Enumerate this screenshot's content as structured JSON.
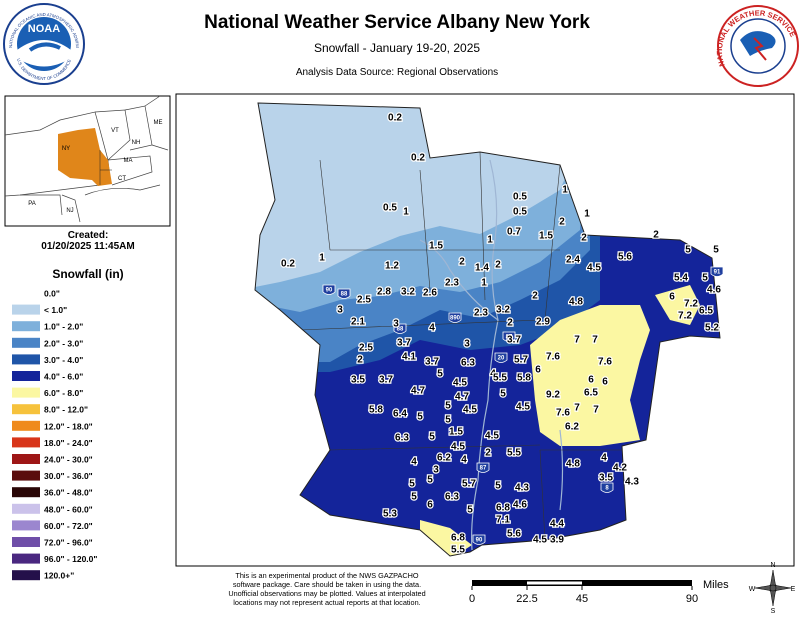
{
  "header": {
    "title": "National Weather Service Albany New York",
    "subtitle": "Snowfall - January 19-20, 2025",
    "source": "Analysis Data Source: Regional Observations"
  },
  "logos": {
    "noaa": "NOAA",
    "noaa_ring_top": "NATIONAL OCEANIC AND ATMOSPHERIC ADMINISTRATION",
    "noaa_ring_bottom": "U.S. DEPARTMENT OF COMMERCE",
    "nws_ring": "NATIONAL WEATHER SERVICE"
  },
  "inset": {
    "labels": [
      "VT",
      "NH",
      "ME",
      "NY",
      "MA",
      "CT",
      "PA",
      "NJ"
    ]
  },
  "created": {
    "label": "Created:",
    "date": "01/20/2025 11:45AM"
  },
  "legend": {
    "title": "Snowfall (in)",
    "items": [
      {
        "label": "0.0\"",
        "color": "#ffffff"
      },
      {
        "label": "< 1.0\"",
        "color": "#b9d3ea"
      },
      {
        "label": "1.0\" - 2.0\"",
        "color": "#7eb0db"
      },
      {
        "label": "2.0\" - 3.0\"",
        "color": "#4a84c6"
      },
      {
        "label": "3.0\" - 4.0\"",
        "color": "#1f55a8"
      },
      {
        "label": "4.0\" - 6.0\"",
        "color": "#14249a"
      },
      {
        "label": "6.0\" - 8.0\"",
        "color": "#fbf7a2"
      },
      {
        "label": "8.0\" - 12.0\"",
        "color": "#f6c23c"
      },
      {
        "label": "12.0\" - 18.0\"",
        "color": "#ef8a1c"
      },
      {
        "label": "18.0\" - 24.0\"",
        "color": "#d8351a"
      },
      {
        "label": "24.0\" - 30.0\"",
        "color": "#9e1616"
      },
      {
        "label": "30.0\" - 36.0\"",
        "color": "#5a0c0c"
      },
      {
        "label": "36.0\" - 48.0\"",
        "color": "#2a0606"
      },
      {
        "label": "48.0\" - 60.0\"",
        "color": "#cbc2ea"
      },
      {
        "label": "60.0\" - 72.0\"",
        "color": "#9b86cf"
      },
      {
        "label": "72.0\" - 96.0\"",
        "color": "#6f4ea8"
      },
      {
        "label": "96.0\" - 120.0\"",
        "color": "#4a2880"
      },
      {
        "label": "120.0+\"",
        "color": "#24104a"
      }
    ]
  },
  "map": {
    "observations": [
      0.2,
      0.2,
      0.5,
      1,
      0.5,
      0.5,
      1,
      1,
      2,
      1.5,
      0.7,
      1,
      1.5,
      2,
      1.4,
      2,
      1,
      2.3,
      1.2,
      1,
      0.2,
      2,
      2,
      2.4,
      4.5,
      5.6,
      5,
      5,
      5.4,
      5,
      4.6,
      6,
      7.2,
      6.5,
      7.2,
      5.2,
      4.8,
      2,
      3.2,
      2.3,
      2,
      3.7,
      2.9,
      2.8,
      3.2,
      2.6,
      2.5,
      3,
      2.1,
      3,
      4,
      3.7,
      3,
      2.5,
      4.1,
      3.7,
      6.3,
      4,
      5,
      4.5,
      4.7,
      5,
      5.7,
      5.5,
      5,
      5.8,
      4.7,
      3.7,
      2,
      3.5,
      5,
      4.5,
      4.5,
      9.2,
      7.6,
      6,
      7,
      7,
      7.6,
      6,
      6,
      6.5,
      7,
      7.6,
      6.2,
      7,
      5.8,
      6.4,
      5,
      6.3,
      5,
      1.5,
      4.5,
      4.5,
      5.5,
      2,
      4,
      6.2,
      3,
      4,
      5,
      5,
      5,
      6,
      6.3,
      5.7,
      5,
      5,
      4.3,
      4.6,
      6.8,
      7.1,
      5.6,
      4.5,
      3.9,
      4.4,
      4.8,
      4,
      4.2,
      3.5,
      4.3,
      5.3,
      6.8,
      5.5
    ],
    "shields": [
      "90",
      "88",
      "890",
      "88",
      "87",
      "20",
      "87",
      "8",
      "91",
      "90"
    ]
  },
  "scale": {
    "unit": "Miles",
    "ticks": [
      0,
      22.5,
      45,
      90
    ]
  },
  "compass": [
    "N",
    "E",
    "S",
    "W"
  ],
  "footer": {
    "lines": [
      "This is an experimental product of the NWS GAZPACHO",
      "software package. Care should be taken in using the data.",
      "Unofficial observations may be plotted. Values at interpolated",
      "locations may not represent actual reports at that location."
    ]
  }
}
